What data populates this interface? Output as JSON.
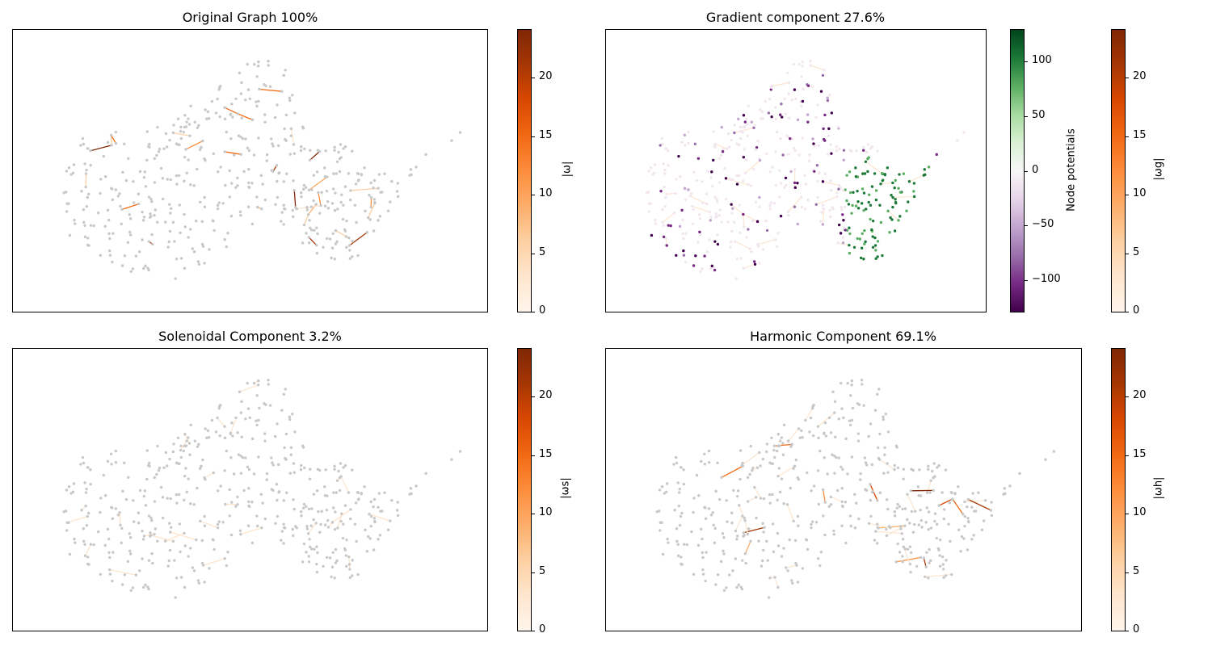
{
  "chart_data": [
    {
      "type": "network",
      "title": "Original Graph 100%",
      "colorbars": [
        {
          "label": "|ω|",
          "range": [
            0,
            24
          ],
          "ticks": [
            "0",
            "5",
            "10",
            "15",
            "20"
          ],
          "colormap": "Oranges"
        }
      ]
    },
    {
      "type": "network",
      "title": "Gradient component 27.6%",
      "colorbars": [
        {
          "label": "Node potentials",
          "range": [
            -130,
            130
          ],
          "ticks": [
            "−100",
            "−50",
            "0",
            "50",
            "100"
          ],
          "colormap": "PRGn"
        },
        {
          "label": "|ωg|",
          "range": [
            0,
            24
          ],
          "ticks": [
            "0",
            "5",
            "10",
            "15",
            "20"
          ],
          "colormap": "Oranges"
        }
      ]
    },
    {
      "type": "network",
      "title": "Solenoidal Component 3.2%",
      "colorbars": [
        {
          "label": "|ωs|",
          "range": [
            0,
            24
          ],
          "ticks": [
            "0",
            "5",
            "10",
            "15",
            "20"
          ],
          "colormap": "Oranges"
        }
      ]
    },
    {
      "type": "network",
      "title": "Harmonic Component 69.1%",
      "colorbars": [
        {
          "label": "|ωh|",
          "range": [
            0,
            24
          ],
          "ticks": [
            "0",
            "5",
            "10",
            "15",
            "20"
          ],
          "colormap": "Oranges"
        }
      ]
    }
  ],
  "colors": {
    "oranges_low": "#fff5eb",
    "oranges_mid": "#fd8d3c",
    "oranges_high": "#7f2704",
    "prgn_low": "#40004b",
    "prgn_mid": "#f7f7f7",
    "prgn_high": "#00441b",
    "node_gray": "#c8c8c8"
  }
}
